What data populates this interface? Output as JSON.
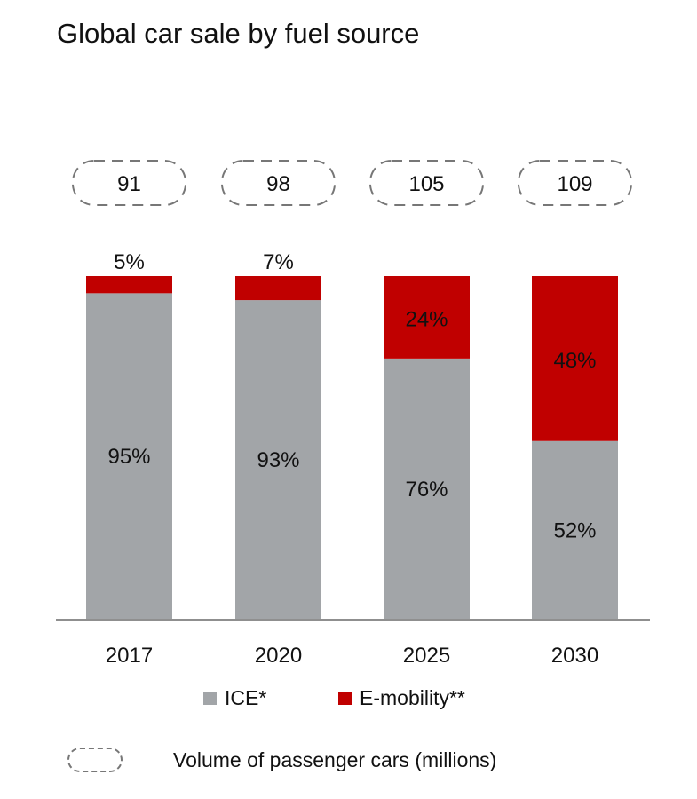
{
  "title": "Global car sale by fuel source",
  "chart_data": {
    "type": "bar",
    "stacked": true,
    "categories": [
      "2017",
      "2020",
      "2025",
      "2030"
    ],
    "series": [
      {
        "name": "ICE*",
        "values": [
          95,
          93,
          76,
          52
        ],
        "labels": [
          "95%",
          "93%",
          "76%",
          "52%"
        ],
        "color": "#a2a5a8"
      },
      {
        "name": "E-mobility**",
        "values": [
          5,
          7,
          24,
          48
        ],
        "labels": [
          "5%",
          "7%",
          "24%",
          "48%"
        ],
        "color": "#c00000"
      }
    ],
    "totals": {
      "name": "Volume of passenger cars (millions)",
      "values": [
        91,
        98,
        105,
        109
      ],
      "labels": [
        "91",
        "98",
        "105",
        "109"
      ]
    },
    "ylim": [
      0,
      100
    ],
    "grid": false,
    "legend": "bottom"
  },
  "legend": {
    "ice": "ICE*",
    "emobility": "E-mobility**",
    "volume": "Volume of passenger cars (millions)"
  }
}
